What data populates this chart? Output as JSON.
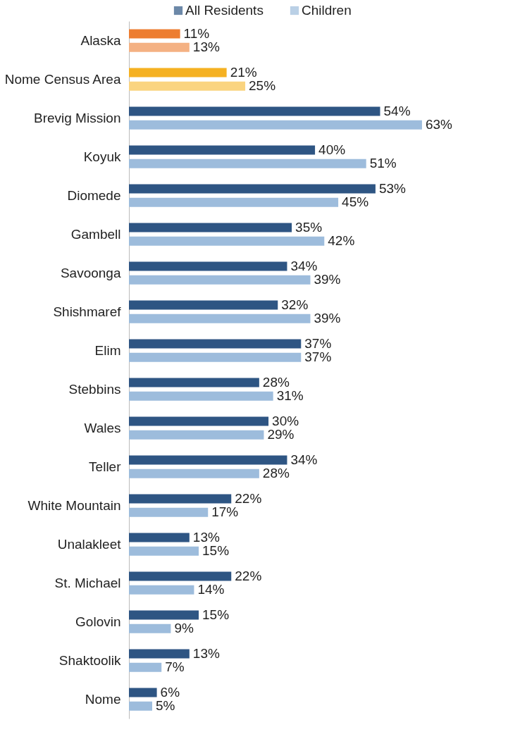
{
  "chart_data": {
    "type": "bar",
    "orientation": "horizontal",
    "legend": "top",
    "categories": [
      "Alaska",
      "Nome Census Area",
      "Brevig Mission",
      "Koyuk",
      "Diomede",
      "Gambell",
      "Savoonga",
      "Shishmaref",
      "Elim",
      "Stebbins",
      "Wales",
      "Teller",
      "White Mountain",
      "Unalakleet",
      "St. Michael",
      "Golovin",
      "Shaktoolik",
      "Nome"
    ],
    "series": [
      {
        "name": "All Residents",
        "color": "#2e5583",
        "colors": [
          "#ed7d31",
          "#f5b122",
          "#2e5583",
          "#2e5583",
          "#2e5583",
          "#2e5583",
          "#2e5583",
          "#2e5583",
          "#2e5583",
          "#2e5583",
          "#2e5583",
          "#2e5583",
          "#2e5583",
          "#2e5583",
          "#2e5583",
          "#2e5583",
          "#2e5583",
          "#2e5583"
        ],
        "values": [
          11,
          21,
          54,
          40,
          53,
          35,
          34,
          32,
          37,
          28,
          30,
          34,
          22,
          13,
          22,
          15,
          13,
          6
        ],
        "value_labels": [
          "11%",
          "21%",
          "54%",
          "40%",
          "53%",
          "35%",
          "34%",
          "32%",
          "37%",
          "28%",
          "30%",
          "34%",
          "22%",
          "13%",
          "22%",
          "15%",
          "13%",
          "6%"
        ]
      },
      {
        "name": "Children",
        "color": "#9dbcdc",
        "colors": [
          "#f4b183",
          "#fad480",
          "#9dbcdc",
          "#9dbcdc",
          "#9dbcdc",
          "#9dbcdc",
          "#9dbcdc",
          "#9dbcdc",
          "#9dbcdc",
          "#9dbcdc",
          "#9dbcdc",
          "#9dbcdc",
          "#9dbcdc",
          "#9dbcdc",
          "#9dbcdc",
          "#9dbcdc",
          "#9dbcdc",
          "#9dbcdc"
        ],
        "values": [
          13,
          25,
          63,
          51,
          45,
          42,
          39,
          39,
          37,
          31,
          29,
          28,
          17,
          15,
          14,
          9,
          7,
          5
        ],
        "value_labels": [
          "13%",
          "25%",
          "63%",
          "51%",
          "45%",
          "42%",
          "39%",
          "39%",
          "37%",
          "31%",
          "29%",
          "28%",
          "17%",
          "15%",
          "14%",
          "9%",
          "7%",
          "5%"
        ]
      }
    ]
  }
}
